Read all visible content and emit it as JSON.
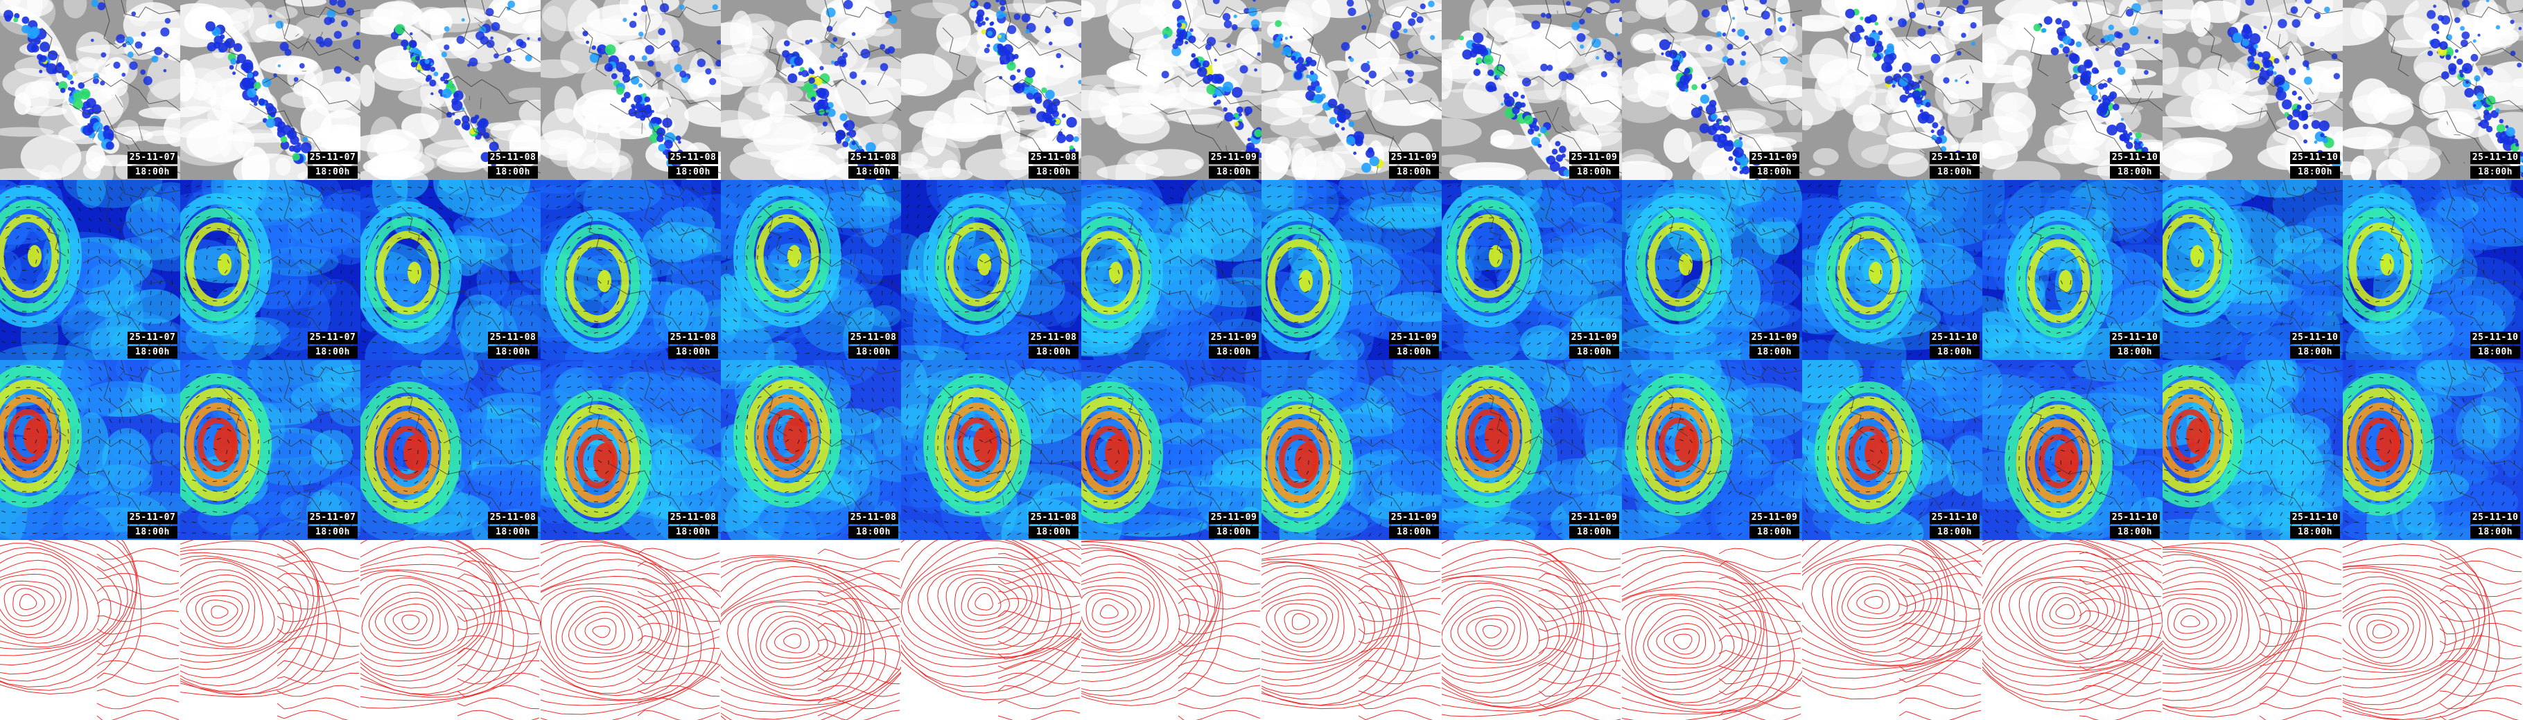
{
  "grid": {
    "columns": 14,
    "rows": [
      {
        "key": "cloud",
        "name": "cloud-precip-row",
        "base": "#9b9b9b"
      },
      {
        "key": "wind_low",
        "name": "wind-low-level-row",
        "base": "#0b22c8"
      },
      {
        "key": "wind_high",
        "name": "wind-upper-level-row",
        "base": "#1b47e6"
      },
      {
        "key": "pressure",
        "name": "pressure-contour-row",
        "base": "#ffffff"
      }
    ]
  },
  "frames": [
    {
      "date": "25-11-07",
      "lead": "18:00h"
    },
    {
      "date": "25-11-07",
      "lead": "18:00h"
    },
    {
      "date": "25-11-08",
      "lead": "18:00h"
    },
    {
      "date": "25-11-08",
      "lead": "18:00h"
    },
    {
      "date": "25-11-08",
      "lead": "18:00h"
    },
    {
      "date": "25-11-08",
      "lead": "18:00h"
    },
    {
      "date": "25-11-09",
      "lead": "18:00h"
    },
    {
      "date": "25-11-09",
      "lead": "18:00h"
    },
    {
      "date": "25-11-09",
      "lead": "18:00h"
    },
    {
      "date": "25-11-09",
      "lead": "18:00h"
    },
    {
      "date": "25-11-10",
      "lead": "18:00h"
    },
    {
      "date": "25-11-10",
      "lead": "18:00h"
    },
    {
      "date": "25-11-10",
      "lead": "18:00h"
    },
    {
      "date": "25-11-10",
      "lead": "18:00h"
    }
  ],
  "palette": {
    "precip": [
      "#1630e0",
      "#1fa0ff",
      "#2bdc6a",
      "#e6f01c"
    ],
    "wind": [
      "#0a1ec0",
      "#1e6fff",
      "#27c8ff",
      "#35f0a8",
      "#d8f21a",
      "#ff9a12",
      "#e82a12"
    ],
    "contour": "#ee2a2a",
    "coast": "#333333",
    "tag_bg": "#000000",
    "tag_fg": "#ffffff"
  }
}
